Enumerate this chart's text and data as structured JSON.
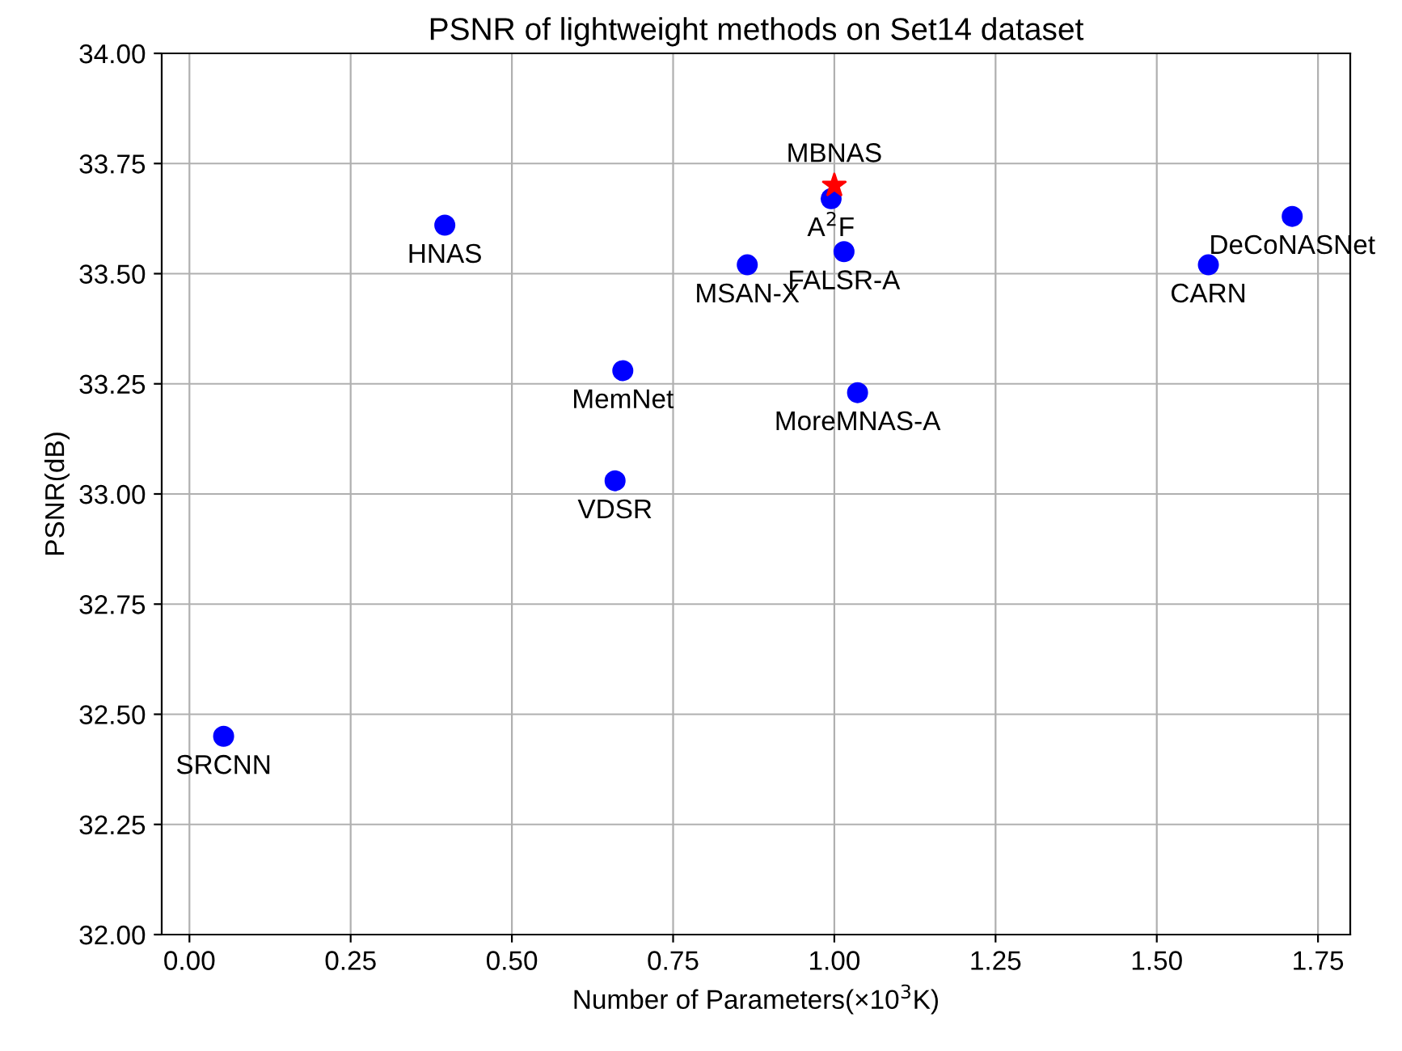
{
  "chart_data": {
    "type": "scatter",
    "title": "PSNR of lightweight methods on Set14 dataset",
    "xlabel": "Number of Parameters(×10$^{3}$K)",
    "ylabel": "PSNR(dB)",
    "series": [
      {
        "color": "#0000ff",
        "marker": "circle",
        "x": [
          0.053,
          0.396,
          0.672,
          0.66,
          0.865,
          0.995,
          1.015,
          1.036,
          1.58,
          1.71
        ],
        "values": [
          32.45,
          33.61,
          33.28,
          33.03,
          33.52,
          33.67,
          33.55,
          33.23,
          33.52,
          33.63
        ]
      },
      {
        "color": "#ff0000",
        "marker": "star",
        "x": [
          1.0
        ],
        "values": [
          33.7
        ]
      }
    ],
    "annotations": [
      {
        "text": "SRCNN",
        "x": 0.053,
        "y": 32.45
      },
      {
        "text": "HNAS",
        "x": 0.396,
        "y": 33.61
      },
      {
        "text": "MemNet",
        "x": 0.672,
        "y": 33.28
      },
      {
        "text": "VDSR",
        "x": 0.66,
        "y": 33.03
      },
      {
        "text": "MSAN-X",
        "x": 0.865,
        "y": 33.52
      },
      {
        "text": "A$^{2}$F",
        "x": 0.995,
        "y": 33.67
      },
      {
        "text": "FALSR-A",
        "x": 1.015,
        "y": 33.55
      },
      {
        "text": "MoreMNAS-A",
        "x": 1.036,
        "y": 33.23
      },
      {
        "text": "CARN",
        "x": 1.58,
        "y": 33.52
      },
      {
        "text": "DeCoNASNet",
        "x": 1.71,
        "y": 33.63
      },
      {
        "text": "MBNAS",
        "x": 1.0,
        "y": 33.7
      }
    ],
    "xlim": [
      -0.043,
      1.8
    ],
    "ylim": [
      32.0,
      34.0
    ],
    "xticks": [
      {
        "value": 0,
        "label": "0.00"
      },
      {
        "value": 0.25,
        "label": "0.25"
      },
      {
        "value": 0.5,
        "label": "0.50"
      },
      {
        "value": 0.75,
        "label": "0.75"
      },
      {
        "value": 1,
        "label": "1.00"
      },
      {
        "value": 1.25,
        "label": "1.25"
      },
      {
        "value": 1.5,
        "label": "1.50"
      },
      {
        "value": 1.75,
        "label": "1.75"
      }
    ],
    "yticks": [
      {
        "value": 32,
        "label": "32.00"
      },
      {
        "value": 32.25,
        "label": "32.25"
      },
      {
        "value": 32.5,
        "label": "32.50"
      },
      {
        "value": 32.75,
        "label": "32.75"
      },
      {
        "value": 33,
        "label": "33.00"
      },
      {
        "value": 33.25,
        "label": "33.25"
      },
      {
        "value": 33.5,
        "label": "33.50"
      },
      {
        "value": 33.75,
        "label": "33.75"
      },
      {
        "value": 34,
        "label": "34.00"
      }
    ],
    "grid": true
  }
}
